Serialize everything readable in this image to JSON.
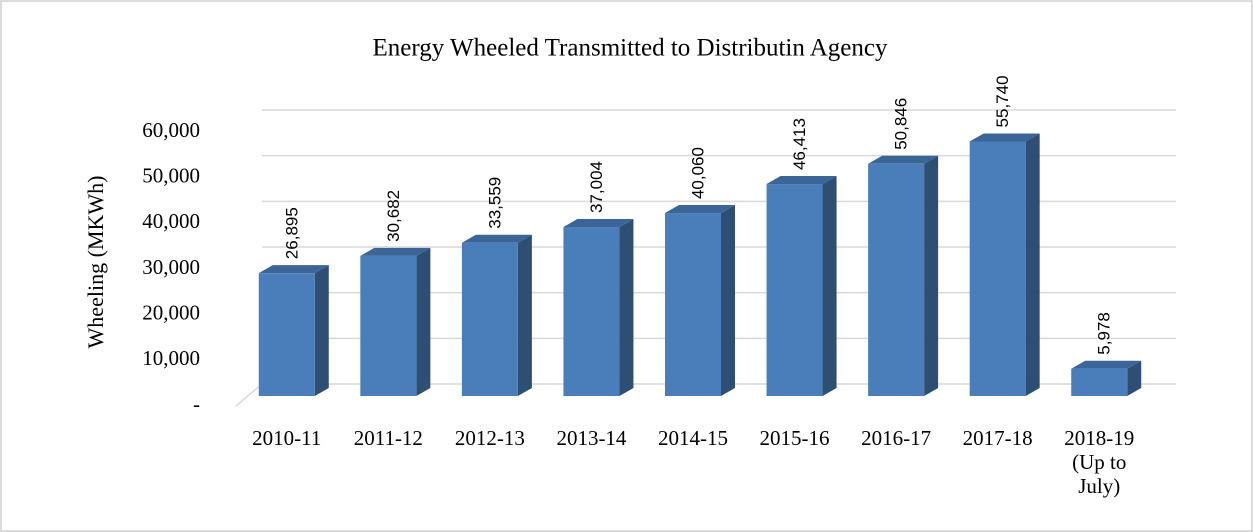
{
  "chart_data": {
    "type": "bar3d",
    "title": "Energy Wheeled Transmitted to Distributin Agency",
    "y_label": "Wheeling (MKWh)",
    "categories": [
      "2010-11",
      "2011-12",
      "2012-13",
      "2013-14",
      "2014-15",
      "2015-16",
      "2016-17",
      "2017-18",
      "2018-19 (Up to July)"
    ],
    "values": [
      26895,
      30682,
      33559,
      37004,
      40060,
      46413,
      50846,
      55740,
      5978
    ],
    "value_labels": [
      "26,895",
      "30,682",
      "33,559",
      "37,004",
      "40,060",
      "46,413",
      "50,846",
      "55,740",
      "5,978"
    ],
    "color": "#4a7ebb",
    "ylim": [
      0,
      60000
    ],
    "yticks": [
      {
        "value": 0,
        "label": "-"
      },
      {
        "value": 10000,
        "label": "10,000"
      },
      {
        "value": 20000,
        "label": "20,000"
      },
      {
        "value": 30000,
        "label": "30,000"
      },
      {
        "value": 40000,
        "label": "40,000"
      },
      {
        "value": 50000,
        "label": "50,000"
      },
      {
        "value": 60000,
        "label": "60,000"
      }
    ],
    "grid": true
  }
}
